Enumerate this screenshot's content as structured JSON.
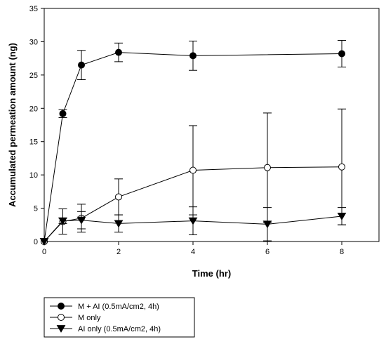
{
  "chart_data": {
    "type": "line",
    "xlabel": "Time (hr)",
    "ylabel": "Accumulated permeation amount (ng)",
    "xlim": [
      0,
      9
    ],
    "ylim": [
      0,
      35
    ],
    "xticks": [
      0,
      2,
      4,
      6,
      8
    ],
    "yticks": [
      0,
      5,
      10,
      15,
      20,
      25,
      30,
      35
    ],
    "grid": false,
    "legend_position": "bottom-left",
    "series": [
      {
        "name": "M + AI (0.5mA/cm2, 4h)",
        "marker": "filled-circle",
        "x": [
          0,
          0.5,
          1,
          2,
          4,
          8
        ],
        "y": [
          0,
          19.2,
          26.5,
          28.4,
          27.9,
          28.2
        ],
        "err": [
          0,
          0.6,
          2.2,
          1.4,
          2.2,
          2.0
        ]
      },
      {
        "name": "M only",
        "marker": "open-circle",
        "x": [
          0,
          0.5,
          1,
          2,
          4,
          6,
          8
        ],
        "y": [
          0,
          3.0,
          3.5,
          6.7,
          10.7,
          11.1,
          11.2
        ],
        "err": [
          0,
          1.9,
          2.1,
          2.7,
          6.7,
          8.2,
          8.7
        ]
      },
      {
        "name": "AI only (0.5mA/cm2, 4h)",
        "marker": "filled-triangle-down",
        "x": [
          0,
          0.5,
          1,
          2,
          4,
          6,
          8
        ],
        "y": [
          0,
          3.1,
          3.2,
          2.7,
          3.1,
          2.6,
          3.8
        ],
        "err": [
          0,
          0.4,
          1.3,
          1.3,
          2.1,
          2.5,
          1.3
        ]
      }
    ]
  }
}
